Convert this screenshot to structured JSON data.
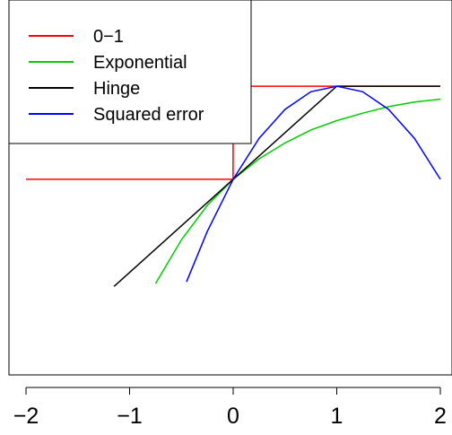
{
  "chart_data": {
    "type": "line",
    "title": "",
    "xlabel": "",
    "ylabel": "",
    "xlim": [
      -2,
      2
    ],
    "ylim": [
      -2.1,
      1.8
    ],
    "x_ticks": [
      "−2",
      "−1",
      "0",
      "1",
      "2"
    ],
    "x_tick_values": [
      -2,
      -1,
      0,
      1,
      2
    ],
    "legend_position": "top-left",
    "series": [
      {
        "name": "0−1",
        "color": "#ff0000",
        "x": [
          -2,
          -0.001,
          0,
          2
        ],
        "y": [
          0,
          0,
          1,
          1
        ]
      },
      {
        "name": "Exponential",
        "color": "#00cd00",
        "x": [
          -0.75,
          -0.5,
          -0.25,
          0,
          0.25,
          0.5,
          0.75,
          1,
          1.25,
          1.5,
          1.75,
          2
        ],
        "y": [
          -1.12,
          -0.65,
          -0.28,
          0,
          0.22,
          0.39,
          0.53,
          0.63,
          0.71,
          0.78,
          0.83,
          0.86
        ]
      },
      {
        "name": "Hinge",
        "color": "#000000",
        "x": [
          -1.15,
          0,
          1,
          2
        ],
        "y": [
          -1.15,
          0,
          1,
          1
        ]
      },
      {
        "name": "Squared error",
        "color": "#0000ff",
        "x": [
          -0.45,
          -0.25,
          0,
          0.25,
          0.5,
          0.75,
          1,
          1.25,
          1.5,
          1.75,
          2
        ],
        "y": [
          -1.1,
          -0.56,
          0,
          0.44,
          0.75,
          0.94,
          1,
          0.94,
          0.75,
          0.44,
          0
        ]
      }
    ]
  }
}
